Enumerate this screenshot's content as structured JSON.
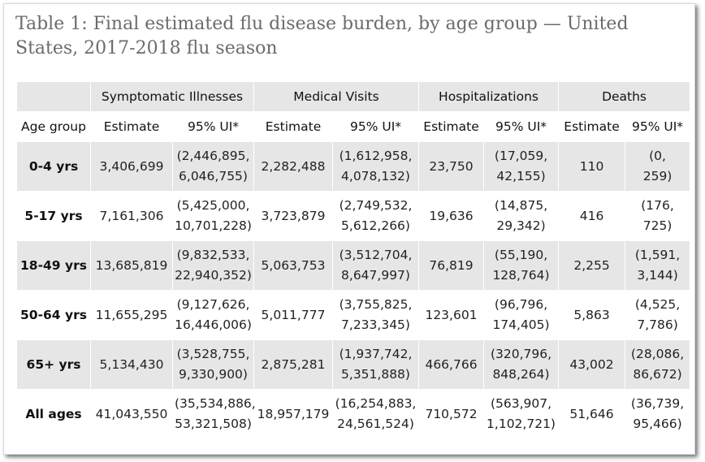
{
  "title": "Table 1: Final estimated flu disease burden, by age group — United States, 2017-2018 flu season",
  "groups": [
    {
      "label": "Symptomatic Illnesses"
    },
    {
      "label": "Medical Visits"
    },
    {
      "label": "Hospitalizations"
    },
    {
      "label": "Deaths"
    }
  ],
  "subheaders": {
    "age_group": "Age group",
    "estimate": "Estimate",
    "ui": "95% UI*"
  },
  "rows": [
    {
      "age": "0-4 yrs",
      "ill_est": "3,406,699",
      "ill_ui_1": "(2,446,895,",
      "ill_ui_2": "6,046,755)",
      "med_est": "2,282,488",
      "med_ui_1": "(1,612,958,",
      "med_ui_2": "4,078,132)",
      "hosp_est": "23,750",
      "hosp_ui_1": "(17,059,",
      "hosp_ui_2": "42,155)",
      "death_est": "110",
      "death_ui_1": "(0,",
      "death_ui_2": "259)"
    },
    {
      "age": "5-17 yrs",
      "ill_est": "7,161,306",
      "ill_ui_1": "(5,425,000,",
      "ill_ui_2": "10,701,228)",
      "med_est": "3,723,879",
      "med_ui_1": "(2,749,532,",
      "med_ui_2": "5,612,266)",
      "hosp_est": "19,636",
      "hosp_ui_1": "(14,875,",
      "hosp_ui_2": "29,342)",
      "death_est": "416",
      "death_ui_1": "(176,",
      "death_ui_2": "725)"
    },
    {
      "age": "18-49 yrs",
      "ill_est": "13,685,819",
      "ill_ui_1": "(9,832,533,",
      "ill_ui_2": "22,940,352)",
      "med_est": "5,063,753",
      "med_ui_1": "(3,512,704,",
      "med_ui_2": "8,647,997)",
      "hosp_est": "76,819",
      "hosp_ui_1": "(55,190,",
      "hosp_ui_2": "128,764)",
      "death_est": "2,255",
      "death_ui_1": "(1,591,",
      "death_ui_2": "3,144)"
    },
    {
      "age": "50-64 yrs",
      "ill_est": "11,655,295",
      "ill_ui_1": "(9,127,626,",
      "ill_ui_2": "16,446,006)",
      "med_est": "5,011,777",
      "med_ui_1": "(3,755,825,",
      "med_ui_2": "7,233,345)",
      "hosp_est": "123,601",
      "hosp_ui_1": "(96,796,",
      "hosp_ui_2": "174,405)",
      "death_est": "5,863",
      "death_ui_1": "(4,525,",
      "death_ui_2": "7,786)"
    },
    {
      "age": "65+ yrs",
      "ill_est": "5,134,430",
      "ill_ui_1": "(3,528,755,",
      "ill_ui_2": "9,330,900)",
      "med_est": "2,875,281",
      "med_ui_1": "(1,937,742,",
      "med_ui_2": "5,351,888)",
      "hosp_est": "466,766",
      "hosp_ui_1": "(320,796,",
      "hosp_ui_2": "848,264)",
      "death_est": "43,002",
      "death_ui_1": "(28,086,",
      "death_ui_2": "86,672)"
    },
    {
      "age": "All ages",
      "ill_est": "41,043,550",
      "ill_ui_1": "(35,534,886,",
      "ill_ui_2": "53,321,508)",
      "med_est": "18,957,179",
      "med_ui_1": "(16,254,883,",
      "med_ui_2": "24,561,524)",
      "hosp_est": "710,572",
      "hosp_ui_1": "(563,907,",
      "hosp_ui_2": "1,102,721)",
      "death_est": "51,646",
      "death_ui_1": "(36,739,",
      "death_ui_2": "95,466)"
    }
  ],
  "colors": {
    "stripe": "#e6e6e6",
    "title_text": "#6b6b6b"
  }
}
